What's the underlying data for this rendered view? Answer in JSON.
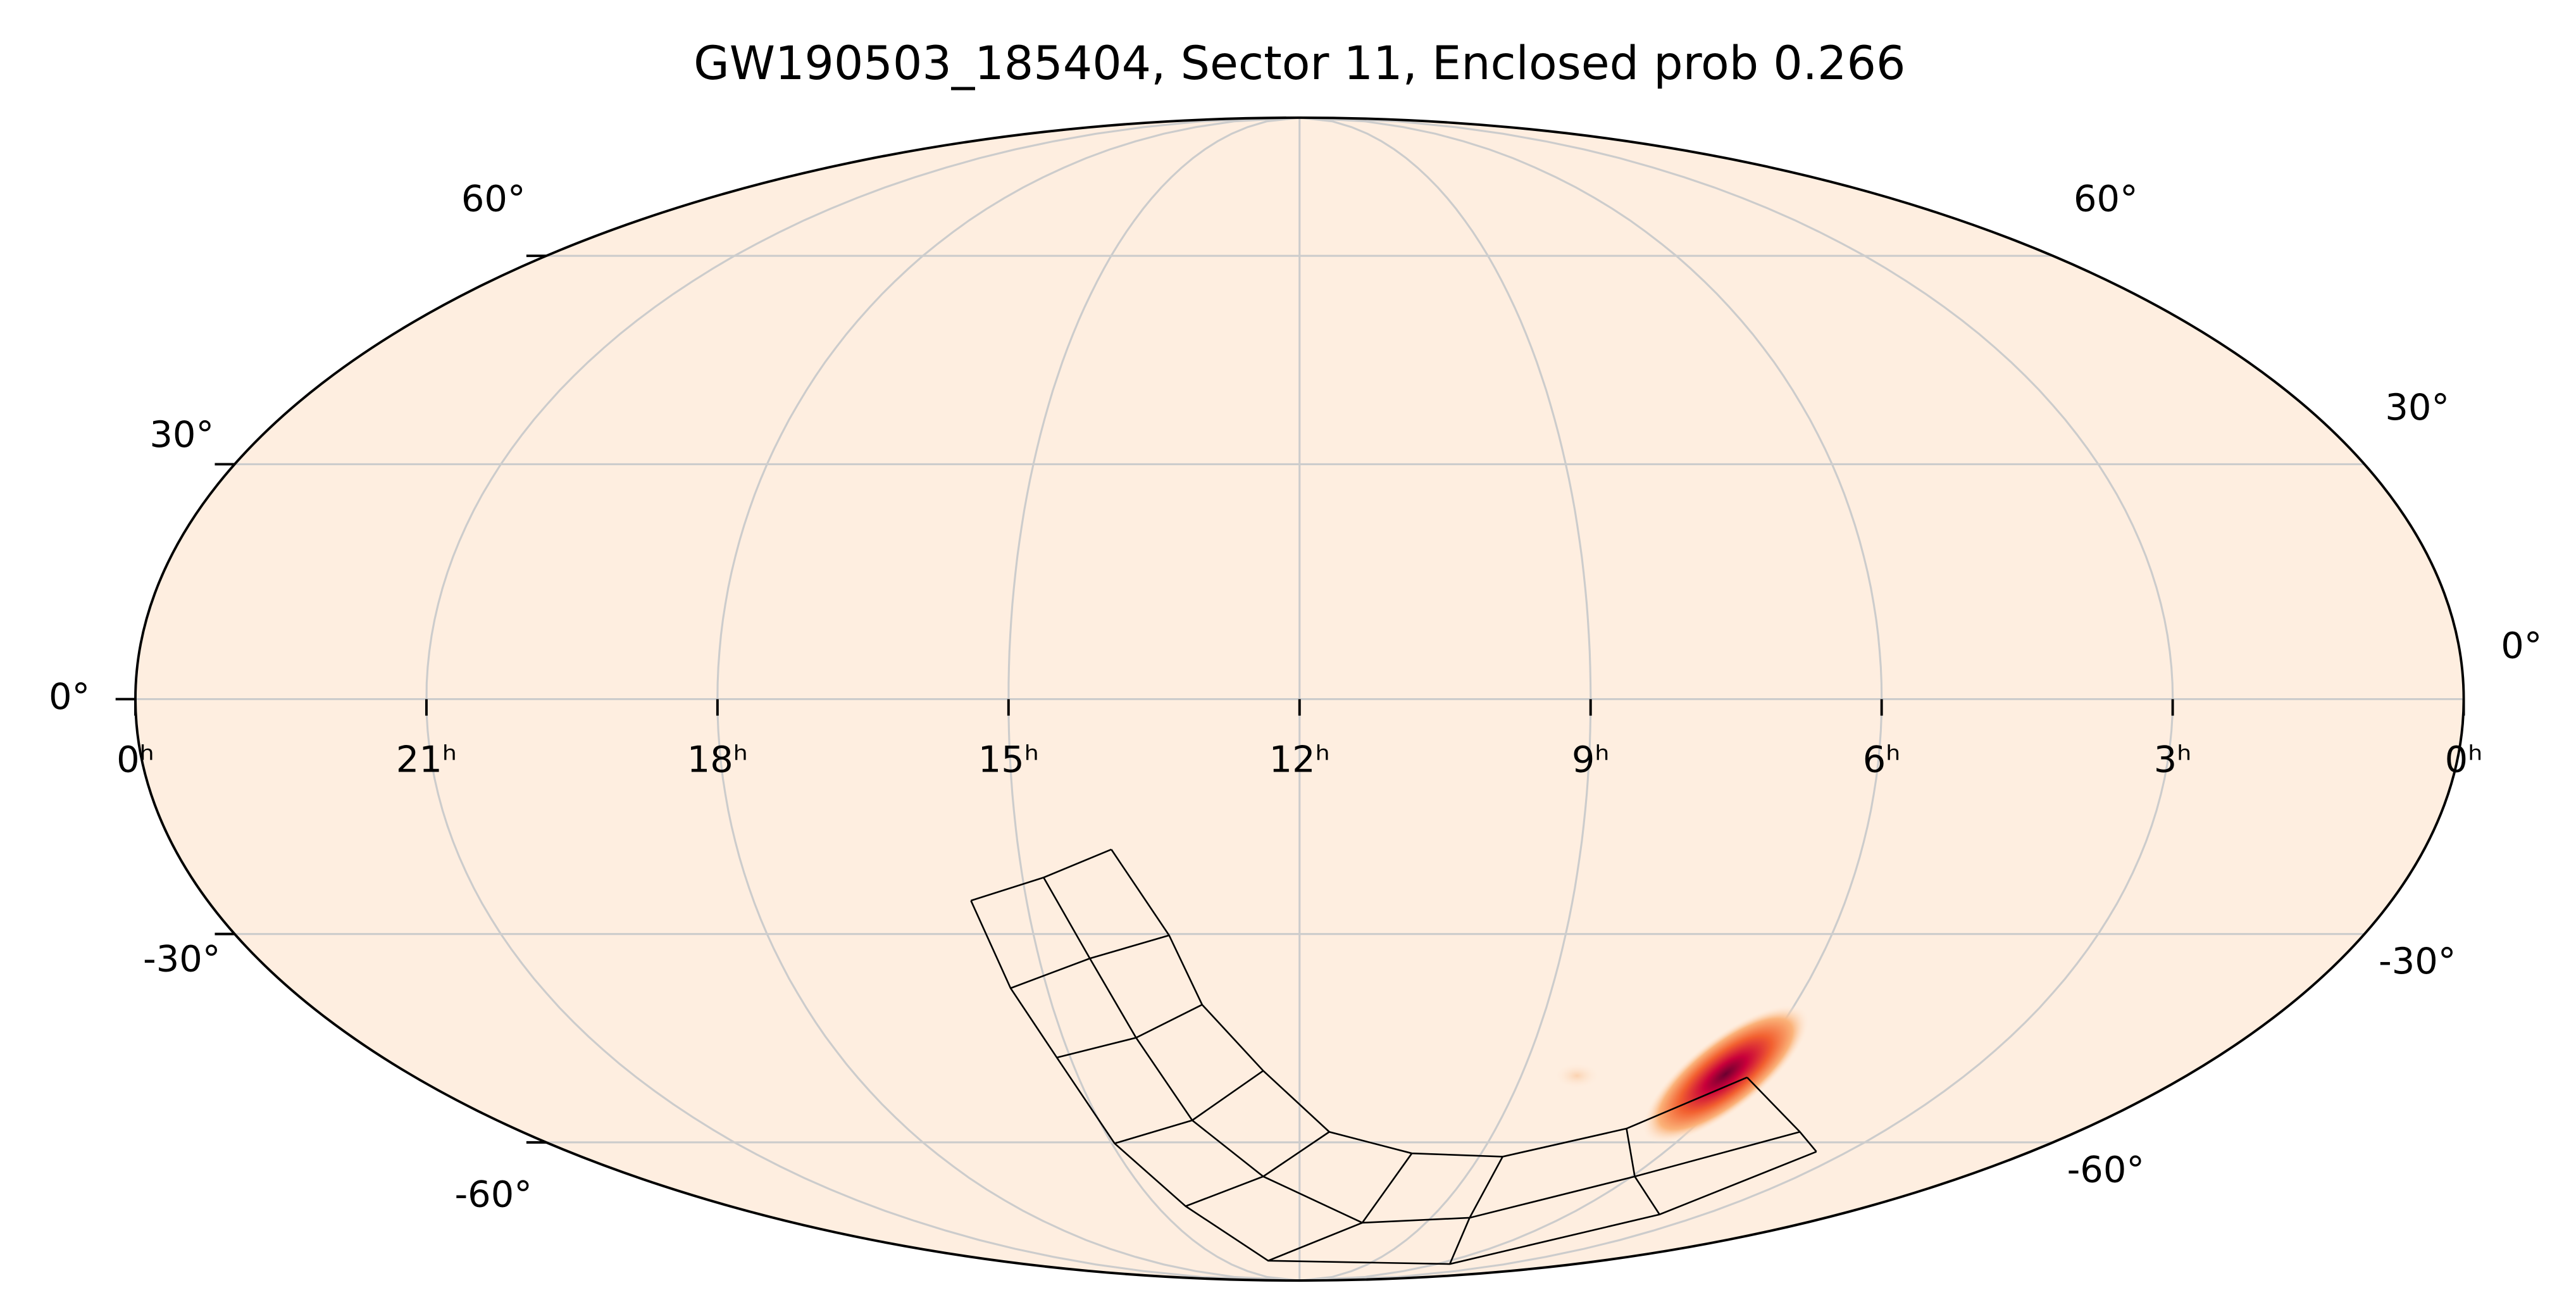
{
  "chart_data": {
    "type": "mollweide",
    "title": "GW190503_185404, Sector 11, Enclosed prob 0.266",
    "xlim": [
      24,
      0
    ],
    "ylim": [
      -90,
      90
    ],
    "xticks": [
      {
        "value": 24,
        "label": "0ʰ"
      },
      {
        "value": 21,
        "label": "21ʰ"
      },
      {
        "value": 18,
        "label": "18ʰ"
      },
      {
        "value": 15,
        "label": "15ʰ"
      },
      {
        "value": 12,
        "label": "12ʰ"
      },
      {
        "value": 9,
        "label": "9ʰ"
      },
      {
        "value": 6,
        "label": "6ʰ"
      },
      {
        "value": 3,
        "label": "3ʰ"
      },
      {
        "value": 0,
        "label": "0ʰ"
      }
    ],
    "yticks": [
      {
        "value": 60,
        "label": "60°"
      },
      {
        "value": 30,
        "label": "30°"
      },
      {
        "value": 0,
        "label": "0°"
      },
      {
        "value": -30,
        "label": "-30°"
      },
      {
        "value": -60,
        "label": "-60°"
      }
    ],
    "grid": true,
    "grid_color": "#cccccc",
    "background_color": "#feeee0"
  }
}
